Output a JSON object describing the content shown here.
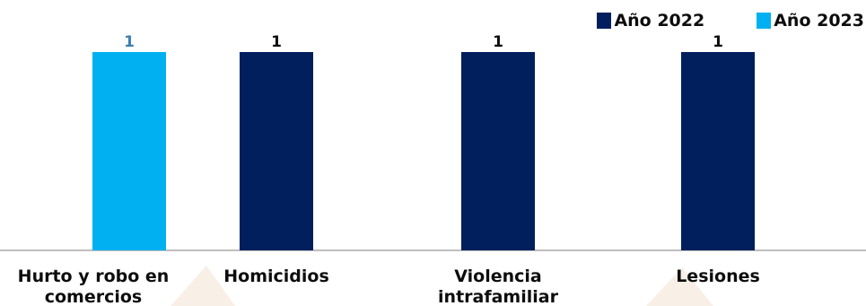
{
  "colors": {
    "year_2022": "#001f5c",
    "year_2023": "#00b0f0",
    "label_2022": "#0d0d0d",
    "label_2023": "#3b7fb3",
    "axis": "#bfbfbf",
    "watermark": "#f3e2d1"
  },
  "chart_data": {
    "type": "bar",
    "title": "",
    "xlabel": "",
    "ylabel": "",
    "ylim": [
      0,
      1
    ],
    "legend_position": "top-right",
    "grid": false,
    "categories": [
      [
        "Hurto y robo en",
        "comercios"
      ],
      [
        "Homicidios"
      ],
      [
        "Violencia",
        "intrafamiliar"
      ],
      [
        "Lesiones"
      ]
    ],
    "series": [
      {
        "name": "Año 2022",
        "values": [
          null,
          1,
          1,
          1
        ]
      },
      {
        "name": "Año 2023",
        "values": [
          1,
          null,
          null,
          null
        ]
      }
    ],
    "data_labels": true
  }
}
